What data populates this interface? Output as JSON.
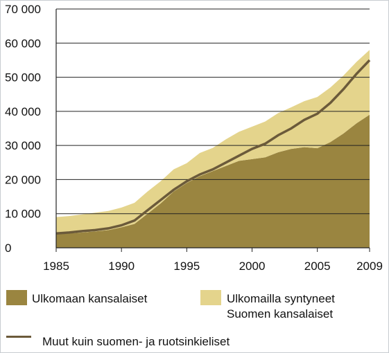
{
  "chart_data": {
    "type": "stacked_area_line",
    "x": [
      1985,
      1986,
      1987,
      1988,
      1989,
      1990,
      1991,
      1992,
      1993,
      1994,
      1995,
      1996,
      1997,
      1998,
      1999,
      2000,
      2001,
      2002,
      2003,
      2004,
      2005,
      2006,
      2007,
      2008,
      2009
    ],
    "series": [
      {
        "name": "Ulkomaan kansalaiset",
        "color": "#9a8540",
        "kind": "area",
        "values": [
          4000,
          4200,
          4500,
          4800,
          5200,
          6000,
          7000,
          10000,
          13000,
          16500,
          19000,
          21000,
          22500,
          24000,
          25500,
          26000,
          26500,
          28000,
          29000,
          29500,
          29200,
          31000,
          33500,
          36500,
          39000
        ]
      },
      {
        "name": "Ulkomailla syntyneet Suomen kansalaiset",
        "color": "#e4d48c",
        "kind": "area",
        "values": [
          5000,
          5100,
          5300,
          5500,
          5600,
          5800,
          6200,
          6500,
          6500,
          6500,
          5800,
          6800,
          6800,
          7800,
          8500,
          9500,
          10500,
          11500,
          12200,
          13500,
          15000,
          16000,
          17000,
          18000,
          19000
        ]
      },
      {
        "name": "Muut kuin suomen- ja ruotsinkieliset",
        "color": "#6b5a3a",
        "kind": "line",
        "values": [
          4200,
          4500,
          4900,
          5200,
          5700,
          6600,
          8000,
          11000,
          14000,
          17000,
          19500,
          21500,
          23000,
          25000,
          27000,
          29000,
          30500,
          33000,
          35000,
          37500,
          39300,
          42500,
          46500,
          51000,
          55000
        ]
      }
    ],
    "xlim": [
      1985,
      2009
    ],
    "xticks": [
      1985,
      1990,
      1995,
      2000,
      2005,
      2009
    ],
    "ylim": [
      0,
      70000
    ],
    "yticks": [
      0,
      {
        "value": 10000,
        "label": "10 000"
      },
      {
        "value": 20000,
        "label": "20 000"
      },
      {
        "value": 30000,
        "label": "30 000"
      },
      {
        "value": 40000,
        "label": "40 000"
      },
      {
        "value": 50000,
        "label": "50 000"
      },
      {
        "value": 60000,
        "label": "60 000"
      },
      {
        "value": 70000,
        "label": "70 000"
      }
    ],
    "grid": true
  }
}
